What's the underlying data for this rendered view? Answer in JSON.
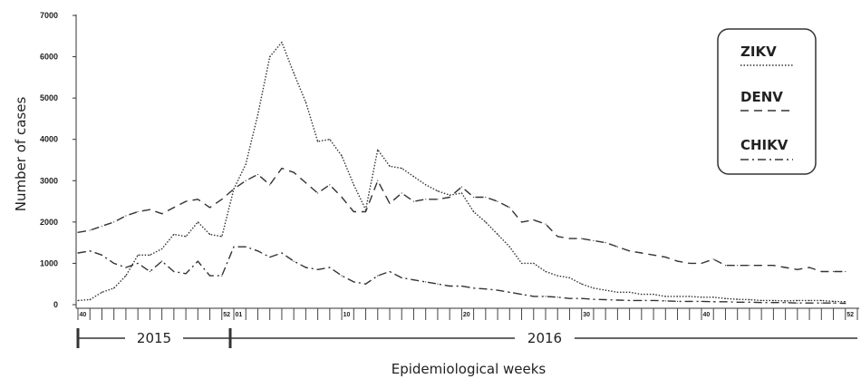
{
  "chart_data": {
    "type": "line",
    "xlabel": "Epidemiological weeks",
    "ylabel": "Number of cases",
    "ylim": [
      0,
      7000
    ],
    "yticks": [
      0,
      1000,
      2000,
      3000,
      4000,
      5000,
      6000,
      7000
    ],
    "x_range": [
      0,
      65
    ],
    "xtick_labels": [
      {
        "index": 0,
        "label": "40"
      },
      {
        "index": 12,
        "label": "52"
      },
      {
        "index": 13,
        "label": "01"
      },
      {
        "index": 22,
        "label": "10"
      },
      {
        "index": 32,
        "label": "20"
      },
      {
        "index": 42,
        "label": "30"
      },
      {
        "index": 52,
        "label": "40"
      },
      {
        "index": 64,
        "label": "52"
      }
    ],
    "year_labels": [
      "2015",
      "2016"
    ],
    "legend_position": "top-right",
    "series": [
      {
        "name": "ZIKV",
        "dash": "dotted",
        "x": [
          0,
          1,
          2,
          3,
          4,
          5,
          6,
          7,
          8,
          9,
          10,
          11,
          12,
          13,
          14,
          15,
          16,
          17,
          18,
          19,
          20,
          21,
          22,
          23,
          24,
          25,
          26,
          27,
          28,
          29,
          30,
          31,
          32,
          33,
          34,
          35,
          36,
          37,
          38,
          39,
          40,
          41,
          42,
          43,
          44,
          45,
          46,
          47,
          48,
          49,
          50,
          51,
          52,
          53,
          54,
          55,
          56,
          57,
          58,
          59,
          60,
          61,
          62,
          63,
          64
        ],
        "values": [
          100,
          120,
          300,
          400,
          700,
          1200,
          1200,
          1350,
          1700,
          1650,
          2000,
          1700,
          1650,
          2800,
          3400,
          4600,
          6000,
          6350,
          5600,
          4900,
          3950,
          4000,
          3600,
          2900,
          2300,
          3750,
          3350,
          3300,
          3100,
          2900,
          2750,
          2650,
          2700,
          2250,
          2000,
          1700,
          1400,
          1000,
          1000,
          800,
          700,
          650,
          500,
          400,
          350,
          300,
          300,
          250,
          250,
          200,
          200,
          200,
          180,
          180,
          150,
          130,
          120,
          100,
          100,
          90,
          100,
          100,
          100,
          80,
          70
        ]
      },
      {
        "name": "DENV",
        "dash": "dashed",
        "x": [
          0,
          1,
          2,
          3,
          4,
          5,
          6,
          7,
          8,
          9,
          10,
          11,
          12,
          13,
          14,
          15,
          16,
          17,
          18,
          19,
          20,
          21,
          22,
          23,
          24,
          25,
          26,
          27,
          28,
          29,
          30,
          31,
          32,
          33,
          34,
          35,
          36,
          37,
          38,
          39,
          40,
          41,
          42,
          43,
          44,
          45,
          46,
          47,
          48,
          49,
          50,
          51,
          52,
          53,
          54,
          55,
          56,
          57,
          58,
          59,
          60,
          61,
          62,
          63,
          64
        ],
        "values": [
          1750,
          1800,
          1900,
          2000,
          2150,
          2250,
          2300,
          2200,
          2350,
          2500,
          2550,
          2350,
          2550,
          2800,
          3000,
          3150,
          2900,
          3300,
          3200,
          2950,
          2700,
          2900,
          2600,
          2250,
          2250,
          3000,
          2450,
          2700,
          2500,
          2550,
          2550,
          2600,
          2850,
          2600,
          2600,
          2500,
          2350,
          2000,
          2050,
          1950,
          1650,
          1600,
          1600,
          1550,
          1500,
          1400,
          1300,
          1250,
          1200,
          1150,
          1050,
          1000,
          1000,
          1100,
          950,
          950,
          950,
          950,
          950,
          900,
          850,
          900,
          800,
          800,
          800
        ]
      },
      {
        "name": "CHIKV",
        "dash": "dash-dot",
        "x": [
          0,
          1,
          2,
          3,
          4,
          5,
          6,
          7,
          8,
          9,
          10,
          11,
          12,
          13,
          14,
          15,
          16,
          17,
          18,
          19,
          20,
          21,
          22,
          23,
          24,
          25,
          26,
          27,
          28,
          29,
          30,
          31,
          32,
          33,
          34,
          35,
          36,
          37,
          38,
          39,
          40,
          41,
          42,
          43,
          44,
          45,
          46,
          47,
          48,
          49,
          50,
          51,
          52,
          53,
          54,
          55,
          56,
          57,
          58,
          59,
          60,
          61,
          62,
          63,
          64
        ],
        "values": [
          1250,
          1300,
          1200,
          1000,
          900,
          1000,
          800,
          1050,
          800,
          750,
          1050,
          700,
          700,
          1400,
          1400,
          1300,
          1150,
          1250,
          1050,
          900,
          850,
          900,
          700,
          550,
          500,
          700,
          800,
          650,
          600,
          550,
          500,
          450,
          450,
          400,
          380,
          350,
          300,
          250,
          200,
          200,
          180,
          150,
          150,
          130,
          120,
          110,
          100,
          100,
          100,
          90,
          80,
          80,
          80,
          70,
          70,
          60,
          60,
          50,
          50,
          50,
          40,
          40,
          40,
          40,
          30
        ]
      }
    ]
  }
}
